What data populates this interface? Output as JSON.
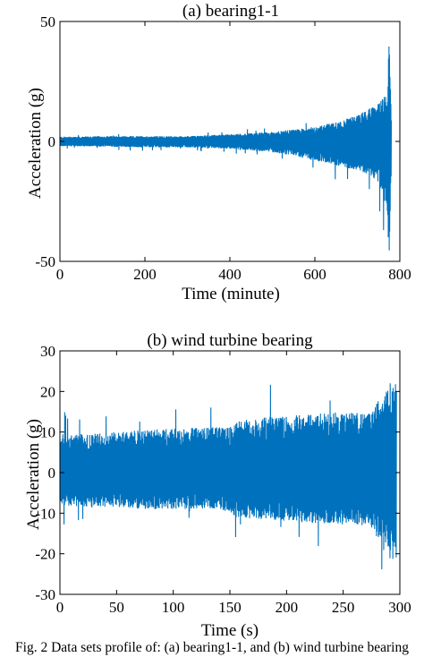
{
  "caption": "Fig. 2  Data sets profile of: (a) bearing1-1, and (b) wind turbine bearing",
  "chart_data": [
    {
      "type": "line",
      "title": "(a) bearing1-1",
      "xlabel": "Time   (minute)",
      "ylabel": "Acceleration (g)",
      "xlim": [
        0,
        800
      ],
      "ylim": [
        -50,
        50
      ],
      "xticks": [
        0,
        200,
        400,
        600,
        800
      ],
      "yticks": [
        -50,
        0,
        50
      ],
      "grid": false,
      "color": "#0072BD",
      "envelope": {
        "x": [
          0,
          100,
          200,
          300,
          400,
          500,
          550,
          600,
          650,
          700,
          730,
          750,
          760,
          770,
          775,
          780
        ],
        "upper": [
          2,
          2.2,
          2.2,
          2.2,
          3,
          4,
          5,
          6,
          8,
          11,
          14,
          16,
          18,
          20,
          44,
          10
        ],
        "lower": [
          -2,
          -2.2,
          -2.5,
          -2.5,
          -3,
          -4.5,
          -6,
          -8,
          -10,
          -12,
          -14,
          -17,
          -22,
          -30,
          -48,
          -12
        ]
      }
    },
    {
      "type": "line",
      "title": "(b) wind turbine bearing",
      "xlabel": "Time (s)",
      "ylabel": "Acceleration (g)",
      "xlim": [
        0,
        300
      ],
      "ylim": [
        -30,
        30
      ],
      "xticks": [
        0,
        50,
        100,
        150,
        200,
        250,
        300
      ],
      "yticks": [
        -30,
        -20,
        -10,
        0,
        10,
        20,
        30
      ],
      "grid": false,
      "color": "#0072BD",
      "envelope": {
        "x": [
          0,
          25,
          50,
          75,
          100,
          125,
          150,
          155,
          175,
          200,
          225,
          250,
          275,
          283,
          290,
          297
        ],
        "upper": [
          9.5,
          9.5,
          10,
          10.5,
          11,
          11,
          11.5,
          13,
          13.5,
          14,
          14.5,
          15,
          14.5,
          19,
          22,
          22.5
        ],
        "lower": [
          -8,
          -8.5,
          -8.5,
          -9,
          -9,
          -9,
          -9.5,
          -11,
          -11.5,
          -12,
          -12.5,
          -13,
          -13,
          -18,
          -21,
          -22
        ]
      }
    }
  ]
}
